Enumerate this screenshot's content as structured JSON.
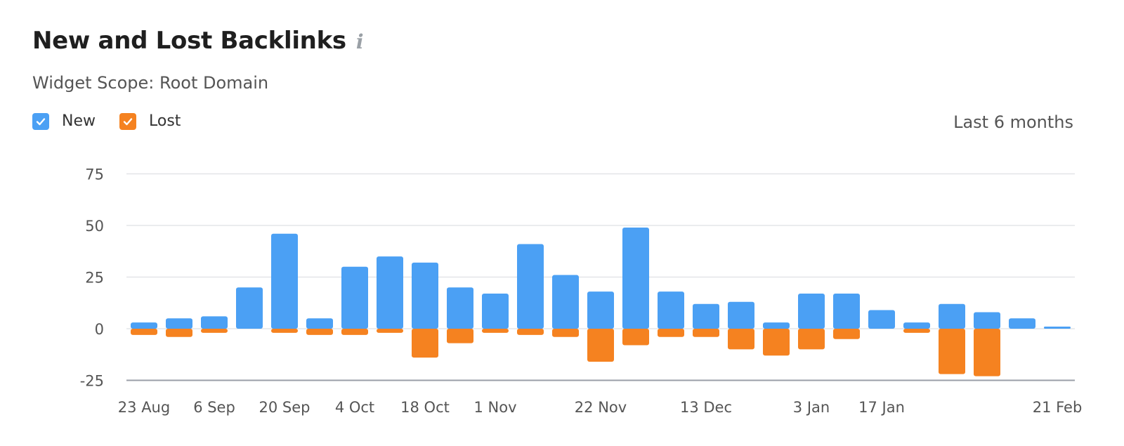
{
  "header": {
    "title": "New and Lost Backlinks",
    "info_icon": "info-icon",
    "subtitle": "Widget Scope: Root Domain",
    "period": "Last 6 months"
  },
  "legend": [
    {
      "label": "New",
      "color": "#4ba0f4",
      "checked": true
    },
    {
      "label": "Lost",
      "color": "#f58220",
      "checked": true
    }
  ],
  "chart_data": {
    "type": "bar",
    "stacked": true,
    "grid": true,
    "ylim": [
      -25,
      75
    ],
    "yticks": [
      75,
      50,
      25,
      0,
      -25
    ],
    "xtick_labels": [
      "23 Aug",
      "6 Sep",
      "20 Sep",
      "4 Oct",
      "18 Oct",
      "1 Nov",
      "22 Nov",
      "13 Dec",
      "3 Jan",
      "17 Jan",
      "21 Feb"
    ],
    "xtick_positions": [
      0,
      2,
      4,
      6,
      8,
      10,
      13,
      16,
      19,
      21,
      26
    ],
    "series": [
      {
        "name": "New",
        "color": "#4ba0f4",
        "values": [
          3,
          5,
          6,
          20,
          46,
          5,
          30,
          35,
          32,
          20,
          17,
          41,
          26,
          18,
          49,
          18,
          12,
          13,
          3,
          17,
          17,
          9,
          3,
          12,
          8,
          5,
          1
        ]
      },
      {
        "name": "Lost",
        "color": "#f58220",
        "values": [
          -3,
          -4,
          -2,
          0,
          -2,
          -3,
          -3,
          -2,
          -14,
          -7,
          -2,
          -3,
          -4,
          -16,
          -8,
          -4,
          -4,
          -10,
          -13,
          -10,
          -5,
          0,
          -2,
          -22,
          -23,
          0,
          0
        ]
      }
    ]
  }
}
